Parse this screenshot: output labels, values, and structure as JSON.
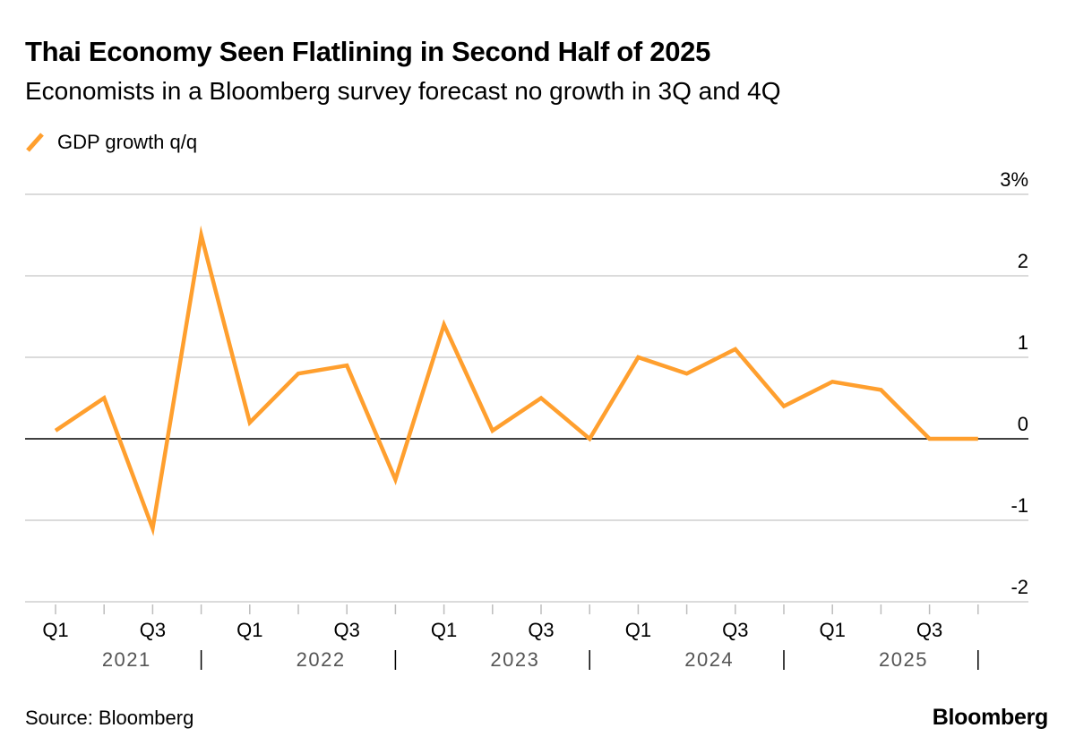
{
  "header": {
    "title": "Thai Economy Seen Flatlining in Second Half of 2025",
    "subtitle": "Economists in a Bloomberg survey forecast no growth in 3Q and 4Q"
  },
  "legend": {
    "label": "GDP growth q/q",
    "color": "#FF9F2E"
  },
  "footer": {
    "source": "Source: Bloomberg",
    "brand": "Bloomberg"
  },
  "chart_data": {
    "type": "line",
    "title": "Thai Economy Seen Flatlining in Second Half of 2025",
    "subtitle": "Economists in a Bloomberg survey forecast no growth in 3Q and 4Q",
    "xlabel": "",
    "ylabel": "",
    "ylim": [
      -2,
      3
    ],
    "y_ticks": [
      -2,
      -1,
      0,
      1,
      2,
      3
    ],
    "y_tick_labels": [
      "-2",
      "-1",
      "0",
      "1",
      "2",
      "3%"
    ],
    "x_tick_labels": [
      "Q1",
      "Q3",
      "Q1",
      "Q3",
      "Q1",
      "Q3",
      "Q1",
      "Q3",
      "Q1",
      "Q3"
    ],
    "year_labels": [
      "2021",
      "2022",
      "2023",
      "2024",
      "2025"
    ],
    "categories": [
      "2021 Q1",
      "2021 Q2",
      "2021 Q3",
      "2021 Q4",
      "2022 Q1",
      "2022 Q2",
      "2022 Q3",
      "2022 Q4",
      "2023 Q1",
      "2023 Q2",
      "2023 Q3",
      "2023 Q4",
      "2024 Q1",
      "2024 Q2",
      "2024 Q3",
      "2024 Q4",
      "2025 Q1",
      "2025 Q2",
      "2025 Q3",
      "2025 Q4"
    ],
    "series": [
      {
        "name": "GDP growth q/q",
        "color": "#FF9F2E",
        "values": [
          0.1,
          0.5,
          -1.1,
          2.5,
          0.2,
          0.8,
          0.9,
          -0.5,
          1.4,
          0.1,
          0.5,
          0.0,
          1.0,
          0.8,
          1.1,
          0.4,
          0.7,
          0.6,
          0.0,
          0.0
        ]
      }
    ],
    "grid": true,
    "legend_position": "top-left"
  }
}
